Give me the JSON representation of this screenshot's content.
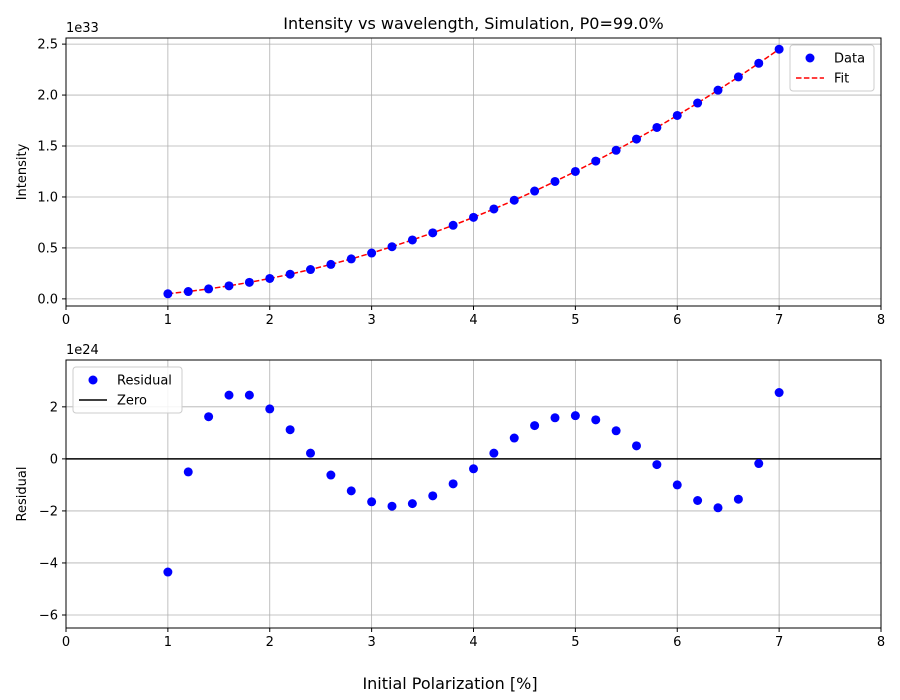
{
  "chart_data": [
    {
      "type": "scatter",
      "title": "Intensity vs wavelength, Simulation, P0=99.0%",
      "xlabel": "",
      "ylabel": "Intensity",
      "y_scale_label": "1e33",
      "xlim": [
        0,
        8
      ],
      "ylim": [
        -0.07,
        2.56
      ],
      "xticks": [
        0,
        1,
        2,
        3,
        4,
        5,
        6,
        7,
        8
      ],
      "yticks": [
        0.0,
        0.5,
        1.0,
        1.5,
        2.0,
        2.5
      ],
      "ytick_labels": [
        "0.0",
        "0.5",
        "1.0",
        "1.5",
        "2.0",
        "2.5"
      ],
      "grid": true,
      "legend_position": "upper-right",
      "series": [
        {
          "name": "Data",
          "kind": "scatter",
          "color": "#0000ff",
          "x": [
            1.0,
            1.2,
            1.4,
            1.6,
            1.8,
            2.0,
            2.2,
            2.4,
            2.6,
            2.8,
            3.0,
            3.2,
            3.4,
            3.6,
            3.8,
            4.0,
            4.2,
            4.4,
            4.6,
            4.8,
            5.0,
            5.2,
            5.4,
            5.6,
            5.8,
            6.0,
            6.2,
            6.4,
            6.6,
            6.8,
            7.0
          ],
          "y": [
            0.05,
            0.072,
            0.098,
            0.128,
            0.162,
            0.2,
            0.242,
            0.288,
            0.338,
            0.392,
            0.45,
            0.512,
            0.578,
            0.648,
            0.722,
            0.8,
            0.882,
            0.968,
            1.058,
            1.152,
            1.25,
            1.352,
            1.458,
            1.568,
            1.682,
            1.8,
            1.922,
            2.048,
            2.178,
            2.312,
            2.45
          ]
        },
        {
          "name": "Fit",
          "kind": "line",
          "style": "dashed",
          "color": "#ff0000",
          "x": [
            1.0,
            1.2,
            1.4,
            1.6,
            1.8,
            2.0,
            2.2,
            2.4,
            2.6,
            2.8,
            3.0,
            3.2,
            3.4,
            3.6,
            3.8,
            4.0,
            4.2,
            4.4,
            4.6,
            4.8,
            5.0,
            5.2,
            5.4,
            5.6,
            5.8,
            6.0,
            6.2,
            6.4,
            6.6,
            6.8,
            7.0
          ],
          "y": [
            0.05,
            0.072,
            0.098,
            0.128,
            0.162,
            0.2,
            0.242,
            0.288,
            0.338,
            0.392,
            0.45,
            0.512,
            0.578,
            0.648,
            0.722,
            0.8,
            0.882,
            0.968,
            1.058,
            1.152,
            1.25,
            1.352,
            1.458,
            1.568,
            1.682,
            1.8,
            1.922,
            2.048,
            2.178,
            2.312,
            2.45
          ]
        }
      ]
    },
    {
      "type": "scatter",
      "title": "",
      "xlabel": "",
      "ylabel": "Residual",
      "y_scale_label": "1e24",
      "xlim": [
        0,
        8
      ],
      "ylim": [
        -6.5,
        3.8
      ],
      "xticks": [
        0,
        1,
        2,
        3,
        4,
        5,
        6,
        7,
        8
      ],
      "yticks": [
        -6,
        -4,
        -2,
        0,
        2
      ],
      "ytick_labels": [
        "−6",
        "−4",
        "−2",
        "0",
        "2"
      ],
      "grid": true,
      "legend_position": "upper-left",
      "series": [
        {
          "name": "Residual",
          "kind": "scatter",
          "color": "#0000ff",
          "x": [
            1.0,
            1.2,
            1.4,
            1.6,
            1.8,
            2.0,
            2.2,
            2.4,
            2.6,
            2.8,
            3.0,
            3.2,
            3.4,
            3.6,
            3.8,
            4.0,
            4.2,
            4.4,
            4.6,
            4.8,
            5.0,
            5.2,
            5.4,
            5.6,
            5.8,
            6.0,
            6.2,
            6.4,
            6.6,
            6.8,
            7.0
          ],
          "y": [
            -4.35,
            -0.5,
            1.62,
            2.45,
            2.45,
            1.92,
            1.12,
            0.22,
            -0.62,
            -1.23,
            -1.65,
            -1.82,
            -1.72,
            -1.42,
            -0.96,
            -0.38,
            0.22,
            0.8,
            1.28,
            1.58,
            1.66,
            1.5,
            1.08,
            0.5,
            -0.22,
            -1.0,
            -1.6,
            -1.88,
            -1.55,
            -0.18,
            2.55
          ]
        },
        {
          "name": "Zero",
          "kind": "hline",
          "color": "#000000",
          "y": 0
        }
      ]
    }
  ],
  "figure": {
    "supxlabel": "Initial Polarization [%]"
  }
}
